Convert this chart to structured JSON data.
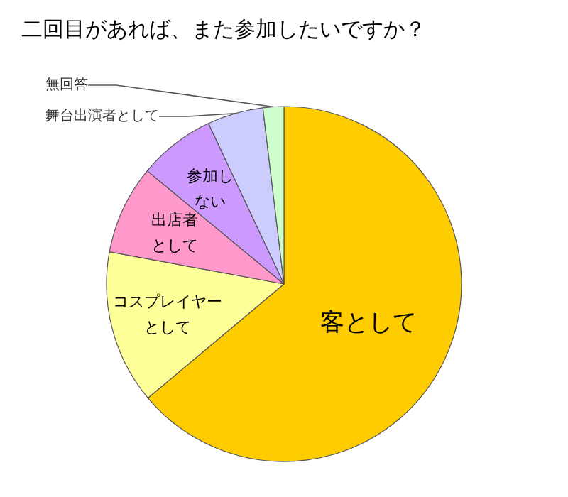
{
  "chart_data": {
    "type": "pie",
    "title": "二回目があれば、また参加したいですか？",
    "categories": [
      "客として",
      "コスプレイヤーとして",
      "出店者として",
      "参加しない",
      "舞台出演者として",
      "無回答"
    ],
    "values": [
      63.9,
      14.0,
      8.1,
      7.0,
      5.1,
      1.9
    ],
    "colors": [
      "#ffcc00",
      "#ffff99",
      "#ff99cc",
      "#cc99ff",
      "#ccccff",
      "#ccffcc"
    ],
    "legend": false
  }
}
